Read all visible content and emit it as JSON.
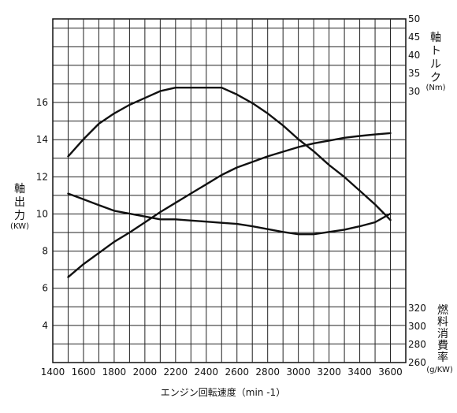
{
  "chart_data": {
    "type": "line",
    "xlabel": "エンジン回転速度（min -1）",
    "x_ticks": [
      1400,
      1600,
      1800,
      2000,
      2200,
      2400,
      2600,
      2800,
      3000,
      3200,
      3400,
      3600
    ],
    "xlim": [
      1400,
      3700
    ],
    "axes": {
      "power": {
        "label_chars": [
          "軸",
          "出",
          "力"
        ],
        "unit": "(KW)",
        "ticks": [
          4,
          6,
          8,
          10,
          12,
          14,
          16
        ],
        "ylim": [
          2,
          20.5
        ]
      },
      "torque": {
        "label_chars": [
          "軸",
          "ト",
          "ル",
          "ク"
        ],
        "unit": "(Nm)",
        "ticks": [
          30,
          35,
          40,
          45,
          50
        ],
        "ylim": [
          30,
          50
        ]
      },
      "fuel": {
        "label_chars": [
          "燃",
          "料",
          "消",
          "費",
          "率"
        ],
        "unit": "(g/KW)",
        "ticks": [
          260,
          280,
          300,
          320
        ],
        "ylim": [
          260,
          320
        ]
      }
    },
    "series": [
      {
        "axis": "torque",
        "x": [
          1500,
          1600,
          1700,
          1800,
          1900,
          2000,
          2100,
          2200,
          2300,
          2400,
          2500,
          2600,
          2700,
          2800,
          2900,
          3000,
          3100,
          3200,
          3300,
          3400,
          3500,
          3600
        ],
        "y": [
          42.0,
          43.0,
          43.9,
          44.5,
          45.0,
          45.4,
          45.8,
          46.0,
          46.0,
          46.0,
          46.0,
          45.6,
          45.1,
          44.5,
          43.8,
          43.0,
          42.3,
          41.5,
          40.8,
          40.0,
          39.2,
          38.3
        ]
      },
      {
        "axis": "power",
        "x": [
          1500,
          1600,
          1700,
          1800,
          1900,
          2000,
          2100,
          2200,
          2300,
          2400,
          2500,
          2600,
          2700,
          2800,
          2900,
          3000,
          3100,
          3200,
          3300,
          3400,
          3500,
          3600
        ],
        "y": [
          6.6,
          7.3,
          7.9,
          8.5,
          9.0,
          9.55,
          10.1,
          10.6,
          11.1,
          11.6,
          12.1,
          12.5,
          12.8,
          13.1,
          13.35,
          13.6,
          13.8,
          13.95,
          14.1,
          14.2,
          14.28,
          14.35
        ]
      },
      {
        "axis": "fuel",
        "x": [
          1500,
          1600,
          1700,
          1800,
          1900,
          2000,
          2100,
          2200,
          2300,
          2400,
          2500,
          2600,
          2700,
          2800,
          2900,
          3000,
          3100,
          3200,
          3300,
          3400,
          3500,
          3600
        ],
        "y": [
          289.5,
          288.5,
          287.5,
          286.5,
          286,
          285.5,
          285,
          285,
          284.8,
          284.6,
          284.4,
          284.2,
          283.8,
          283.3,
          282.8,
          282.4,
          282.4,
          282.8,
          283.2,
          283.8,
          284.5,
          286
        ]
      }
    ]
  }
}
